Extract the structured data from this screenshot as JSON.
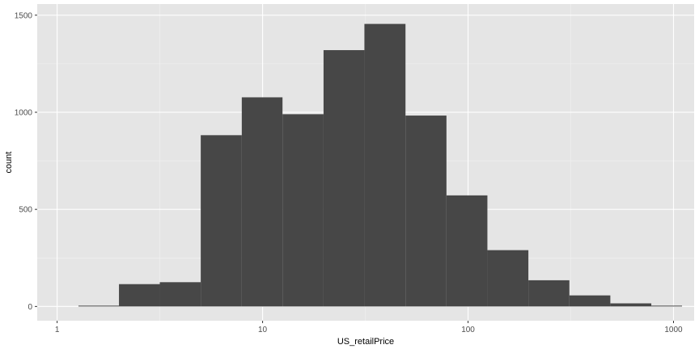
{
  "chart_data": {
    "type": "bar",
    "subtype": "histogram",
    "title": "",
    "xlabel": "US_retailPrice",
    "ylabel": "count",
    "x_scale": "log10",
    "xlim": [
      1,
      1200
    ],
    "ylim": [
      0,
      1550
    ],
    "x_ticks": [
      {
        "value": 1,
        "label": "1"
      },
      {
        "value": 10,
        "label": "10"
      },
      {
        "value": 100,
        "label": "100"
      },
      {
        "value": 1000,
        "label": "1000"
      }
    ],
    "y_ticks": [
      {
        "value": 0,
        "label": "0"
      },
      {
        "value": 500,
        "label": "500"
      },
      {
        "value": 1000,
        "label": "1000"
      },
      {
        "value": 1500,
        "label": "1500"
      }
    ],
    "bins": [
      {
        "x0": 1.27,
        "x1": 2.0,
        "count": 3
      },
      {
        "x0": 2.0,
        "x1": 3.16,
        "count": 115
      },
      {
        "x0": 3.16,
        "x1": 5.0,
        "count": 125
      },
      {
        "x0": 5.0,
        "x1": 7.92,
        "count": 882
      },
      {
        "x0": 7.92,
        "x1": 12.5,
        "count": 1077
      },
      {
        "x0": 12.5,
        "x1": 19.8,
        "count": 990
      },
      {
        "x0": 19.8,
        "x1": 31.3,
        "count": 1320
      },
      {
        "x0": 31.3,
        "x1": 49.6,
        "count": 1455
      },
      {
        "x0": 49.6,
        "x1": 78.5,
        "count": 983
      },
      {
        "x0": 78.5,
        "x1": 124.2,
        "count": 572
      },
      {
        "x0": 124.2,
        "x1": 196.6,
        "count": 290
      },
      {
        "x0": 196.6,
        "x1": 311.2,
        "count": 135
      },
      {
        "x0": 311.2,
        "x1": 492.6,
        "count": 57
      },
      {
        "x0": 492.6,
        "x1": 779.6,
        "count": 16
      },
      {
        "x0": 779.6,
        "x1": 1100,
        "count": 3
      }
    ],
    "grid": true,
    "legend": "none",
    "colors": {
      "panel_background": "#e5e5e5",
      "grid_major": "#ffffff",
      "grid_minor": "#f2f2f2",
      "bar_fill": "#474747"
    }
  }
}
